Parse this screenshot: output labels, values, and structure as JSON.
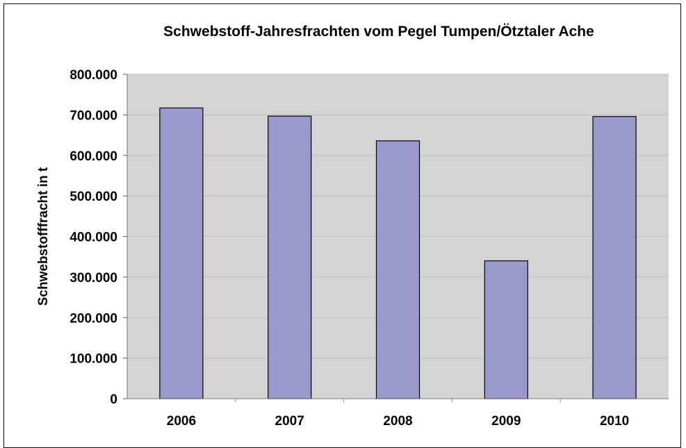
{
  "chart_data": {
    "type": "bar",
    "title": "Schwebstoff-Jahresfrachten vom Pegel Tumpen/Ötztaler Ache",
    "xlabel": "",
    "ylabel": "Schwebstofffracht in t",
    "categories": [
      "2006",
      "2007",
      "2008",
      "2009",
      "2010"
    ],
    "values": [
      717000,
      697000,
      636000,
      340000,
      696000
    ],
    "ylim": [
      0,
      800000
    ],
    "yticks": [
      0,
      100000,
      200000,
      300000,
      400000,
      500000,
      600000,
      700000,
      800000
    ],
    "ytick_labels": [
      "0",
      "100.000",
      "200.000",
      "300.000",
      "400.000",
      "500.000",
      "600.000",
      "700.000",
      "800.000"
    ],
    "grid": true,
    "legend": "none",
    "colors": {
      "bar_fill": "#9999cc",
      "bar_stroke": "#000000",
      "plot_background": "#d4d4d4",
      "gridline": "#bdbdbd"
    }
  }
}
